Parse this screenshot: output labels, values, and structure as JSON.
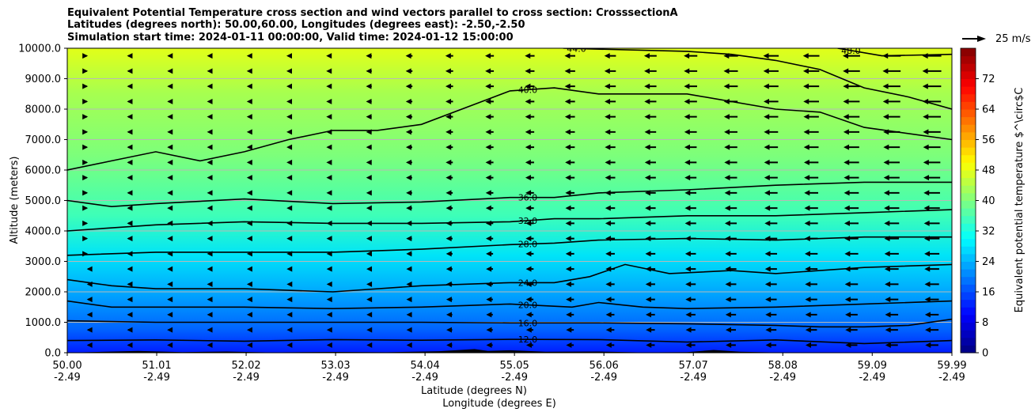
{
  "chart_data": {
    "type": "heatmap",
    "title_lines": [
      "Equivalent Potential Temperature cross section and wind vectors parallel to cross section: CrosssectionA",
      "Latitudes (degrees north): 50.00,60.00, Longitudes (degrees east): -2.50,-2.50",
      "Simulation start time: 2024-01-11 00:00:00, Valid time: 2024-01-12 15:00:00"
    ],
    "ylabel": "Altitude (meters)",
    "xlabel_line1": "Latitude (degrees N)",
    "xlabel_line2": "Longitude (degrees E)",
    "ylim": [
      0,
      10000
    ],
    "yticks": [
      "0.0",
      "1000.0",
      "2000.0",
      "3000.0",
      "4000.0",
      "5000.0",
      "6000.0",
      "7000.0",
      "8000.0",
      "9000.0",
      "10000.0"
    ],
    "ytick_values": [
      0,
      1000,
      2000,
      3000,
      4000,
      5000,
      6000,
      7000,
      8000,
      9000,
      10000
    ],
    "xlim": [
      50.0,
      59.99
    ],
    "xtick_lats": [
      "50.00",
      "51.01",
      "52.02",
      "53.03",
      "54.04",
      "55.05",
      "56.06",
      "57.07",
      "58.08",
      "59.09",
      "59.99"
    ],
    "xtick_lons": [
      "-2.49",
      "-2.49",
      "-2.49",
      "-2.49",
      "-2.49",
      "-2.49",
      "-2.49",
      "-2.49",
      "-2.49",
      "-2.49",
      "-2.49"
    ],
    "xtick_values": [
      50.0,
      51.01,
      52.02,
      53.03,
      54.04,
      55.05,
      56.06,
      57.07,
      58.08,
      59.09,
      59.99
    ],
    "grid_y": true,
    "colorbar": {
      "label": "Equivalent potential temperature $^\\circ$C",
      "range": [
        0,
        80
      ],
      "ticks": [
        "0",
        "8",
        "16",
        "24",
        "32",
        "40",
        "48",
        "56",
        "64",
        "72"
      ],
      "tick_values": [
        0,
        8,
        16,
        24,
        32,
        40,
        48,
        56,
        64,
        72
      ],
      "colormap": "jet"
    },
    "contours": [
      {
        "label": "12.0",
        "level": 12,
        "points": [
          [
            50.0,
            400
          ],
          [
            51.0,
            420
          ],
          [
            52.0,
            380
          ],
          [
            53.0,
            430
          ],
          [
            54.0,
            410
          ],
          [
            55.0,
            440
          ],
          [
            56.0,
            430
          ],
          [
            57.0,
            350
          ],
          [
            58.0,
            420
          ],
          [
            59.0,
            300
          ],
          [
            59.99,
            400
          ]
        ]
      },
      {
        "label": "16.0",
        "level": 16,
        "points": [
          [
            50.0,
            1050
          ],
          [
            51.0,
            1000
          ],
          [
            52.0,
            1000
          ],
          [
            53.0,
            1000
          ],
          [
            54.0,
            1000
          ],
          [
            55.0,
            980
          ],
          [
            56.0,
            980
          ],
          [
            57.0,
            950
          ],
          [
            58.0,
            900
          ],
          [
            58.5,
            850
          ],
          [
            59.0,
            850
          ],
          [
            59.5,
            900
          ],
          [
            59.99,
            1100
          ]
        ]
      },
      {
        "label": "20.0",
        "level": 20,
        "points": [
          [
            50.0,
            1700
          ],
          [
            50.5,
            1500
          ],
          [
            51.0,
            1500
          ],
          [
            52.0,
            1500
          ],
          [
            53.0,
            1450
          ],
          [
            54.0,
            1500
          ],
          [
            55.0,
            1600
          ],
          [
            55.7,
            1500
          ],
          [
            56.0,
            1650
          ],
          [
            56.5,
            1500
          ],
          [
            57.0,
            1450
          ],
          [
            58.0,
            1500
          ],
          [
            59.0,
            1600
          ],
          [
            59.99,
            1700
          ]
        ]
      },
      {
        "label": "24.0",
        "level": 24,
        "points": [
          [
            50.0,
            2400
          ],
          [
            50.5,
            2200
          ],
          [
            51.0,
            2100
          ],
          [
            52.0,
            2100
          ],
          [
            53.0,
            2000
          ],
          [
            54.0,
            2200
          ],
          [
            55.0,
            2300
          ],
          [
            55.5,
            2300
          ],
          [
            55.9,
            2500
          ],
          [
            56.3,
            2900
          ],
          [
            56.8,
            2600
          ],
          [
            57.5,
            2700
          ],
          [
            58.0,
            2600
          ],
          [
            59.0,
            2800
          ],
          [
            59.99,
            2900
          ]
        ]
      },
      {
        "label": "28.0",
        "level": 28,
        "points": [
          [
            50.0,
            3200
          ],
          [
            51.0,
            3300
          ],
          [
            52.0,
            3300
          ],
          [
            53.0,
            3300
          ],
          [
            54.0,
            3400
          ],
          [
            55.0,
            3550
          ],
          [
            55.5,
            3600
          ],
          [
            56.0,
            3700
          ],
          [
            57.0,
            3750
          ],
          [
            58.0,
            3700
          ],
          [
            59.0,
            3800
          ],
          [
            59.99,
            3800
          ]
        ]
      },
      {
        "label": "32.0",
        "level": 32,
        "points": [
          [
            50.0,
            4000
          ],
          [
            51.0,
            4200
          ],
          [
            52.0,
            4300
          ],
          [
            53.0,
            4250
          ],
          [
            54.0,
            4250
          ],
          [
            55.0,
            4300
          ],
          [
            55.5,
            4400
          ],
          [
            56.0,
            4400
          ],
          [
            57.0,
            4500
          ],
          [
            58.0,
            4500
          ],
          [
            59.0,
            4600
          ],
          [
            59.99,
            4700
          ]
        ]
      },
      {
        "label": "36.0",
        "level": 36,
        "points": [
          [
            50.0,
            5000
          ],
          [
            50.5,
            4800
          ],
          [
            51.0,
            4900
          ],
          [
            52.0,
            5050
          ],
          [
            53.0,
            4900
          ],
          [
            54.0,
            4950
          ],
          [
            55.0,
            5100
          ],
          [
            55.5,
            5100
          ],
          [
            56.0,
            5250
          ],
          [
            57.0,
            5350
          ],
          [
            58.0,
            5500
          ],
          [
            59.0,
            5600
          ],
          [
            59.99,
            5600
          ]
        ]
      },
      {
        "label": "40.0",
        "level": 40,
        "points": [
          [
            50.0,
            6000
          ],
          [
            50.5,
            6300
          ],
          [
            51.0,
            6600
          ],
          [
            51.5,
            6300
          ],
          [
            52.0,
            6600
          ],
          [
            52.5,
            7000
          ],
          [
            53.0,
            7300
          ],
          [
            53.5,
            7300
          ],
          [
            54.0,
            7500
          ],
          [
            55.0,
            8600
          ],
          [
            55.5,
            8700
          ],
          [
            56.0,
            8500
          ],
          [
            57.0,
            8500
          ],
          [
            58.0,
            8000
          ],
          [
            58.5,
            7900
          ],
          [
            59.0,
            7400
          ],
          [
            59.99,
            7000
          ]
        ]
      },
      {
        "label": "44.0",
        "level": 44,
        "points": [
          [
            55.6,
            10000
          ],
          [
            57.0,
            9900
          ],
          [
            57.5,
            9800
          ],
          [
            58.0,
            9600
          ],
          [
            58.5,
            9300
          ],
          [
            59.0,
            8700
          ],
          [
            59.5,
            8400
          ],
          [
            59.99,
            8000
          ]
        ]
      },
      {
        "label": "48.0",
        "level": 48,
        "points": [
          [
            58.7,
            10000
          ],
          [
            59.2,
            9750
          ],
          [
            59.99,
            9800
          ]
        ]
      }
    ],
    "wind_reference": {
      "label": "25 m/s",
      "speed": 25
    }
  }
}
